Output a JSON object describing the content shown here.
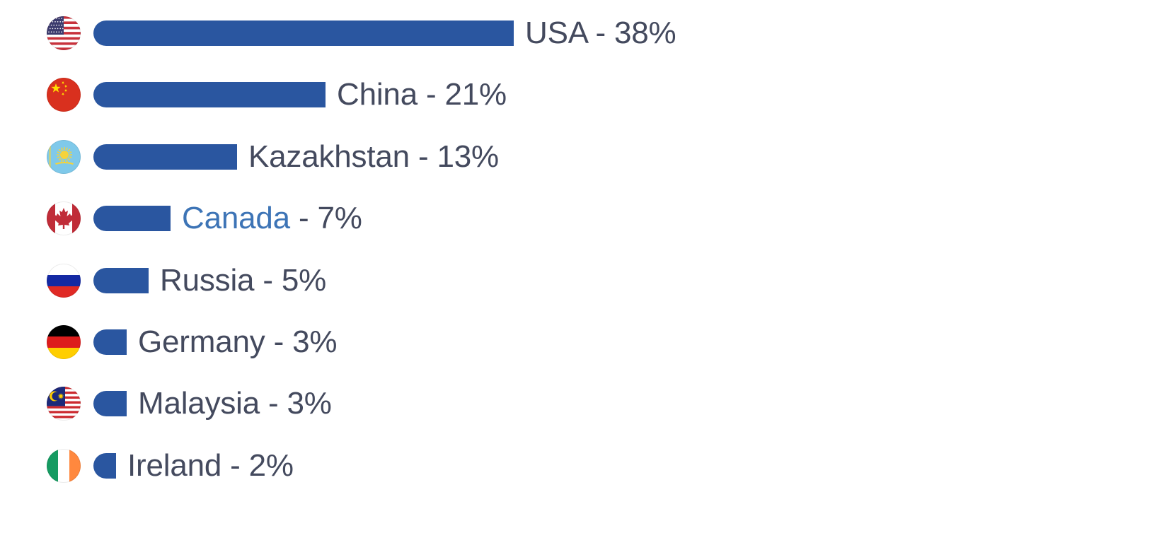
{
  "colors": {
    "bar": "#2a56a0",
    "label_text": "#444a5e",
    "link_text": "#3d74b6"
  },
  "chart_data": {
    "type": "bar",
    "orientation": "horizontal",
    "unit": "%",
    "xlim": [
      0,
      38
    ],
    "rows": [
      {
        "country": "USA",
        "value": 38,
        "value_label": "38%",
        "flag_icon": "us-flag-icon",
        "is_link": false
      },
      {
        "country": "China",
        "value": 21,
        "value_label": "21%",
        "flag_icon": "china-flag-icon",
        "is_link": false
      },
      {
        "country": "Kazakhstan",
        "value": 13,
        "value_label": "13%",
        "flag_icon": "kazakhstan-flag-icon",
        "is_link": false
      },
      {
        "country": "Canada",
        "value": 7,
        "value_label": "7%",
        "flag_icon": "canada-flag-icon",
        "is_link": true
      },
      {
        "country": "Russia",
        "value": 5,
        "value_label": "5%",
        "flag_icon": "russia-flag-icon",
        "is_link": false
      },
      {
        "country": "Germany",
        "value": 3,
        "value_label": "3%",
        "flag_icon": "germany-flag-icon",
        "is_link": false
      },
      {
        "country": "Malaysia",
        "value": 3,
        "value_label": "3%",
        "flag_icon": "malaysia-flag-icon",
        "is_link": false
      },
      {
        "country": "Ireland",
        "value": 2,
        "value_label": "2%",
        "flag_icon": "ireland-flag-icon",
        "is_link": false
      }
    ]
  }
}
